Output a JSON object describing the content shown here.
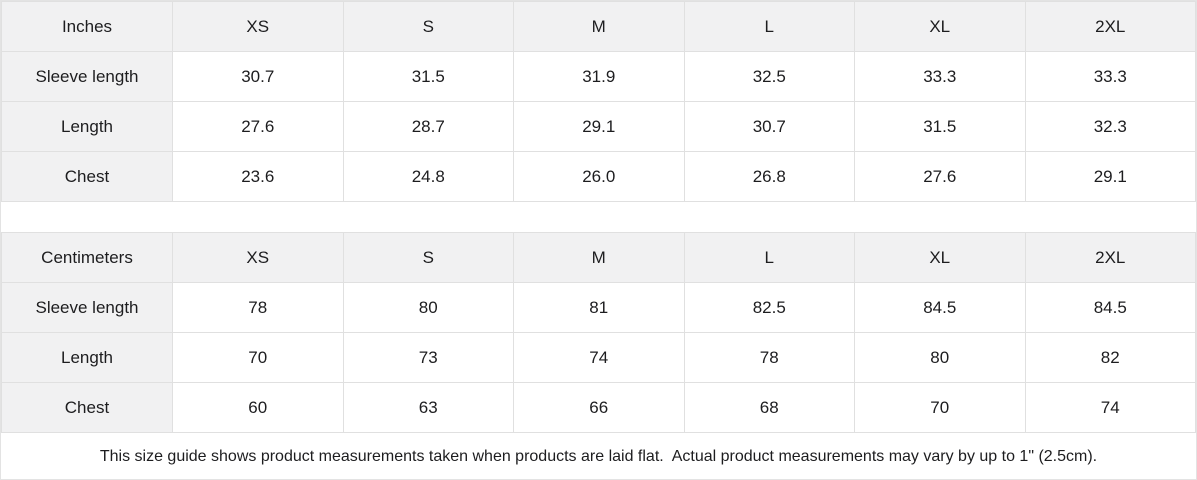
{
  "inches_table": {
    "unit": "Inches",
    "sizes": [
      "XS",
      "S",
      "M",
      "L",
      "XL",
      "2XL"
    ],
    "rows": [
      {
        "label": "Sleeve length",
        "values": [
          "30.7",
          "31.5",
          "31.9",
          "32.5",
          "33.3",
          "33.3"
        ]
      },
      {
        "label": "Length",
        "values": [
          "27.6",
          "28.7",
          "29.1",
          "30.7",
          "31.5",
          "32.3"
        ]
      },
      {
        "label": "Chest",
        "values": [
          "23.6",
          "24.8",
          "26.0",
          "26.8",
          "27.6",
          "29.1"
        ]
      }
    ]
  },
  "centimeters_table": {
    "unit": "Centimeters",
    "sizes": [
      "XS",
      "S",
      "M",
      "L",
      "XL",
      "2XL"
    ],
    "rows": [
      {
        "label": "Sleeve length",
        "values": [
          "78",
          "80",
          "81",
          "82.5",
          "84.5",
          "84.5"
        ]
      },
      {
        "label": "Length",
        "values": [
          "70",
          "73",
          "74",
          "78",
          "80",
          "82"
        ]
      },
      {
        "label": "Chest",
        "values": [
          "60",
          "63",
          "66",
          "68",
          "70",
          "74"
        ]
      }
    ]
  },
  "footer": {
    "note": "This size guide shows product measurements taken when products are laid flat.  Actual product measurements may vary by up to 1\" (2.5cm)."
  },
  "colors": {
    "header_bg": "#f1f1f2",
    "border": "#e0e0e0",
    "text": "#1d1d1f"
  }
}
